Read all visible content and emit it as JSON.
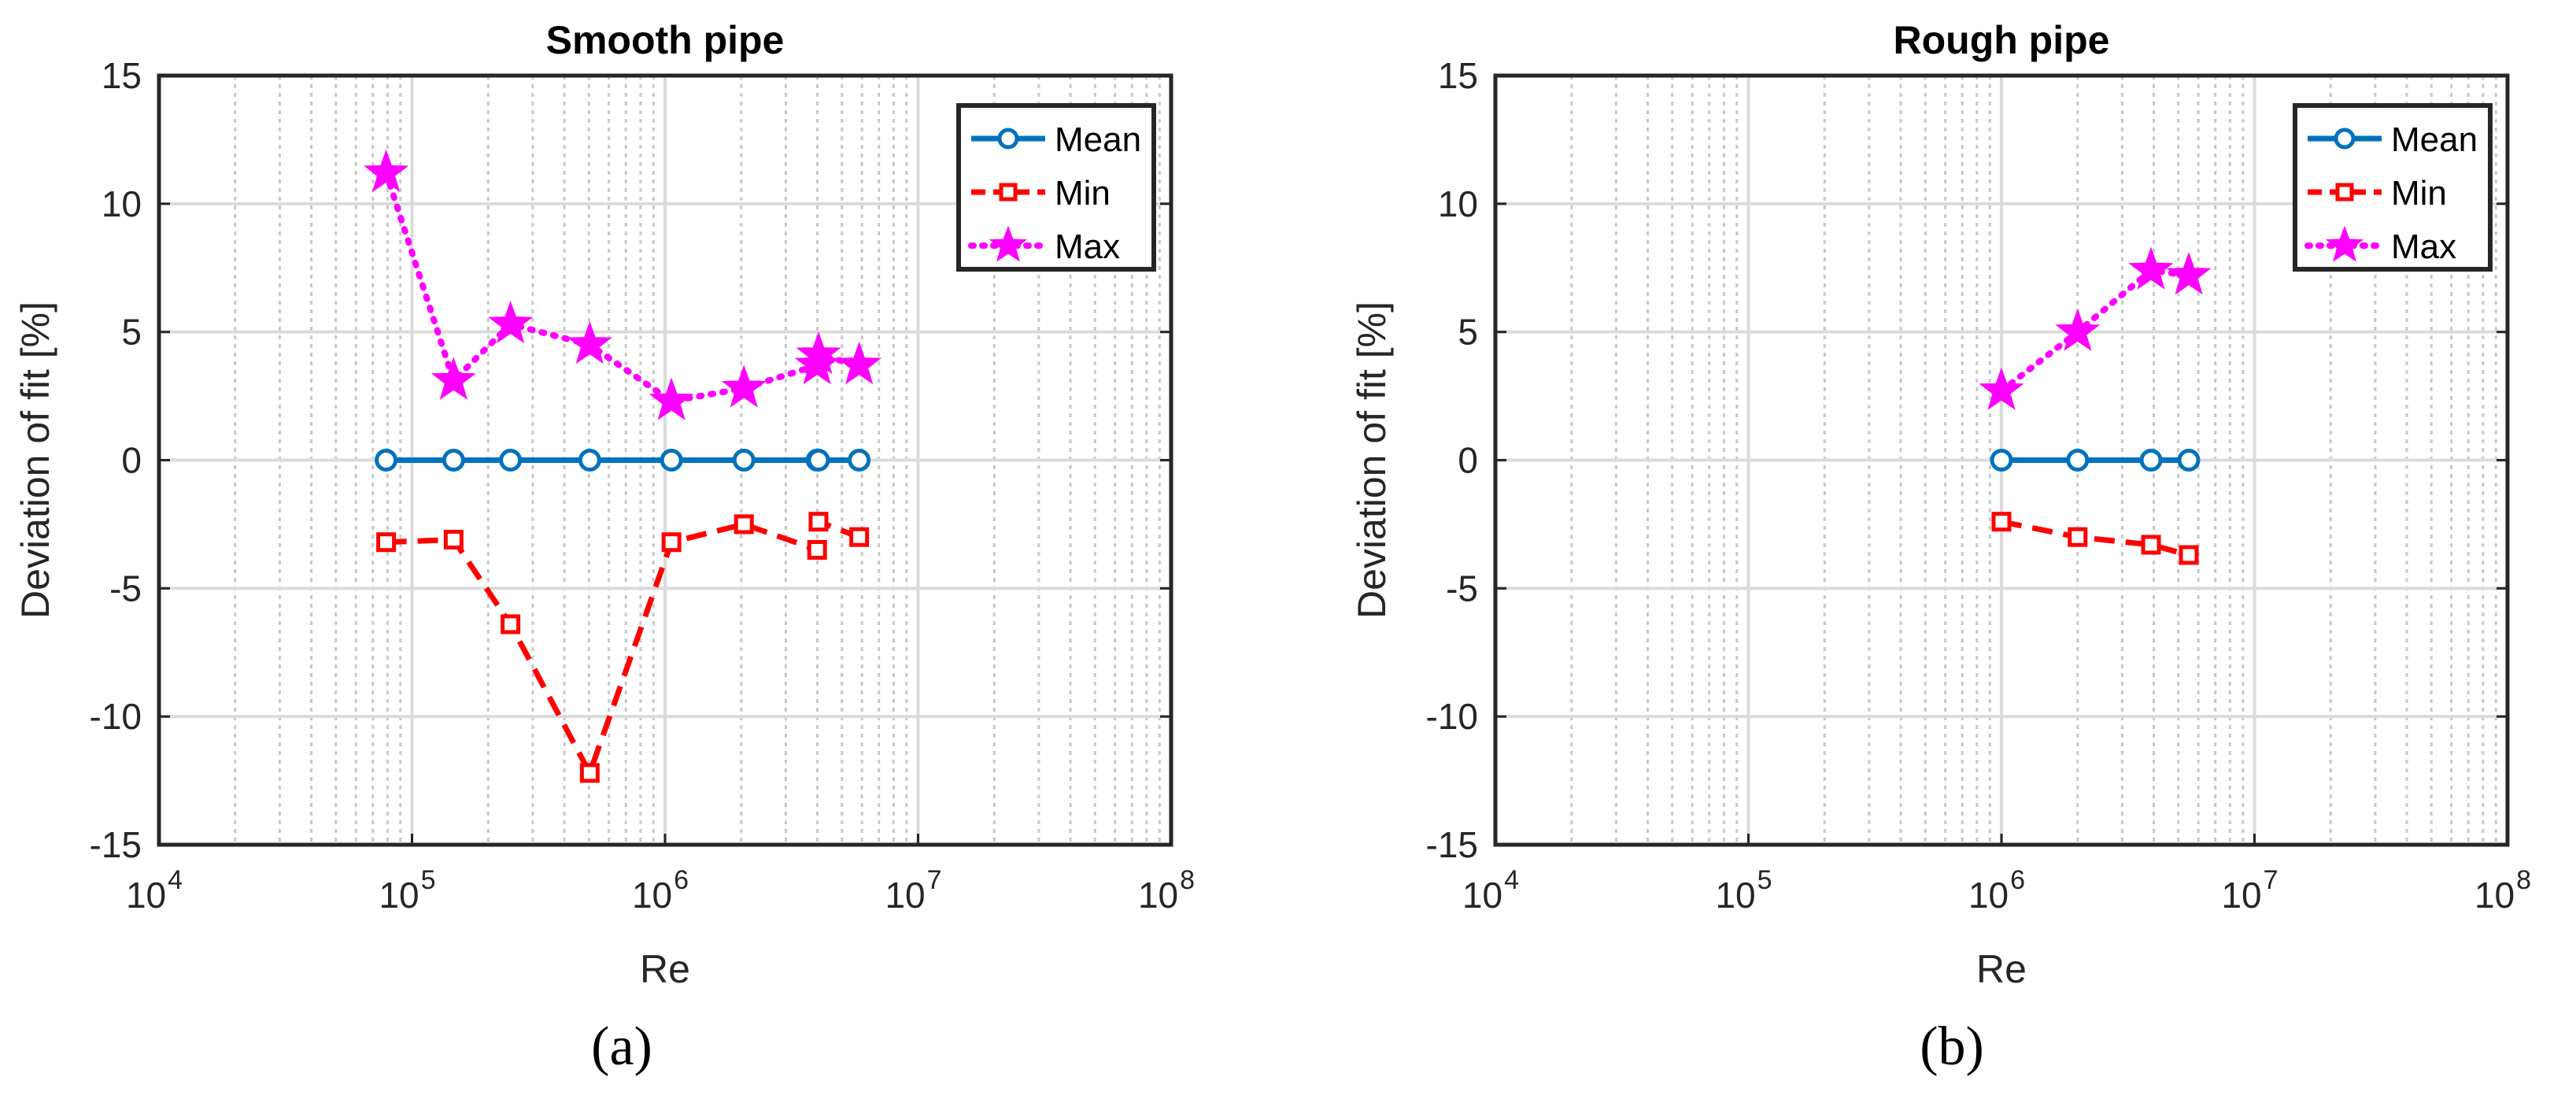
{
  "colors": {
    "mean": "#0072BD",
    "min": "#FF0000",
    "max": "#FF00FF",
    "grid_major": "#DBDBDB",
    "grid_minor": "#C8C8C8",
    "axes": "#262626"
  },
  "legend_placement": "top-right",
  "chart_data": [
    {
      "panel": "(a)",
      "type": "line",
      "title": "Smooth pipe",
      "xlabel": "Re",
      "ylabel": "Deviation of fit [%]",
      "xscale": "log",
      "xlim": [
        10000,
        100000000
      ],
      "ylim": [
        -15,
        15
      ],
      "grid": true,
      "minor_grid": true,
      "x_ticks": [
        {
          "base": "10",
          "exp": "4"
        },
        {
          "base": "10",
          "exp": "5"
        },
        {
          "base": "10",
          "exp": "6"
        },
        {
          "base": "10",
          "exp": "7"
        },
        {
          "base": "10",
          "exp": "8"
        }
      ],
      "y_ticks": [
        "15",
        "10",
        "5",
        "0",
        "-5",
        "-10",
        "-15"
      ],
      "series": [
        {
          "name": "Mean",
          "style": "solid",
          "marker": "circle",
          "x": [
            79000,
            146000,
            245000,
            504000,
            1060000,
            2050000,
            3990000,
            4040000,
            5850000
          ],
          "y": [
            0,
            0,
            0,
            0,
            0,
            0,
            0,
            0,
            0
          ]
        },
        {
          "name": "Min",
          "style": "dashed",
          "marker": "square",
          "x": [
            79000,
            146000,
            245000,
            504000,
            1060000,
            2050000,
            3990000,
            4040000,
            5850000
          ],
          "y": [
            -3.2,
            -3.1,
            -6.4,
            -12.2,
            -3.2,
            -2.5,
            -3.5,
            -2.4,
            -3.0
          ]
        },
        {
          "name": "Max",
          "style": "dotted",
          "marker": "star",
          "x": [
            79000,
            146000,
            245000,
            504000,
            1060000,
            2050000,
            3990000,
            4040000,
            5850000
          ],
          "y": [
            11.2,
            3.1,
            5.3,
            4.5,
            2.3,
            2.8,
            3.7,
            4.1,
            3.7
          ]
        }
      ]
    },
    {
      "panel": "(b)",
      "type": "line",
      "title": "Rough pipe",
      "xlabel": "Re",
      "ylabel": "Deviation of fit [%]",
      "xscale": "log",
      "xlim": [
        10000,
        100000000
      ],
      "ylim": [
        -15,
        15
      ],
      "grid": true,
      "minor_grid": true,
      "x_ticks": [
        {
          "base": "10",
          "exp": "4"
        },
        {
          "base": "10",
          "exp": "5"
        },
        {
          "base": "10",
          "exp": "6"
        },
        {
          "base": "10",
          "exp": "7"
        },
        {
          "base": "10",
          "exp": "8"
        }
      ],
      "y_ticks": [
        "15",
        "10",
        "5",
        "0",
        "-5",
        "-10",
        "-15"
      ],
      "series": [
        {
          "name": "Mean",
          "style": "solid",
          "marker": "circle",
          "x": [
            1000000,
            2000000,
            3900000,
            5500000
          ],
          "y": [
            0,
            0,
            0,
            0
          ]
        },
        {
          "name": "Min",
          "style": "dashed",
          "marker": "square",
          "x": [
            1000000,
            2000000,
            3900000,
            5500000
          ],
          "y": [
            -2.4,
            -3.0,
            -3.3,
            -3.7
          ]
        },
        {
          "name": "Max",
          "style": "dotted",
          "marker": "star",
          "x": [
            1000000,
            2000000,
            3900000,
            5500000
          ],
          "y": [
            2.7,
            5.0,
            7.4,
            7.2
          ]
        }
      ]
    }
  ]
}
